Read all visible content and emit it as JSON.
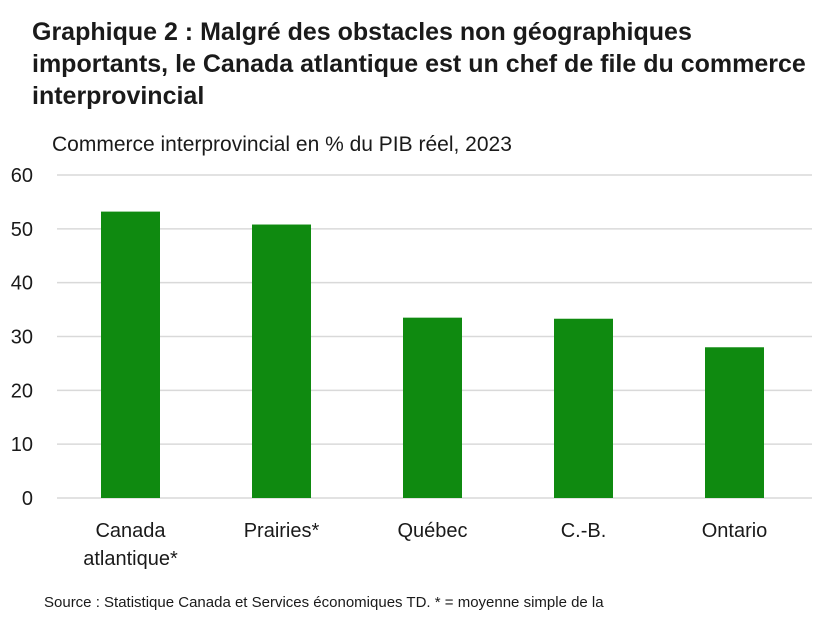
{
  "title": "Graphique 2 : Malgré des obstacles non géographiques importants, le Canada atlantique est un chef de file du commerce interprovincial",
  "source_note": "Source : Statistique Canada et Services économiques TD. * = moyenne simple de la",
  "colors": {
    "bar": "#0f8a10",
    "grid": "#d9d9d9",
    "text": "#1a1a1a"
  },
  "chart_data": {
    "type": "bar",
    "title": "Commerce interprovincial en % du PIB réel, 2023",
    "xlabel": "",
    "ylabel": "",
    "ylim": [
      0,
      60
    ],
    "yticks": [
      0,
      10,
      20,
      30,
      40,
      50,
      60
    ],
    "grid": true,
    "legend": "none",
    "categories": [
      [
        "Canada",
        "atlantique*"
      ],
      [
        "Prairies*"
      ],
      [
        "Québec"
      ],
      [
        "C.-B."
      ],
      [
        "Ontario"
      ]
    ],
    "values": [
      53.2,
      50.8,
      33.5,
      33.3,
      28.0
    ]
  }
}
